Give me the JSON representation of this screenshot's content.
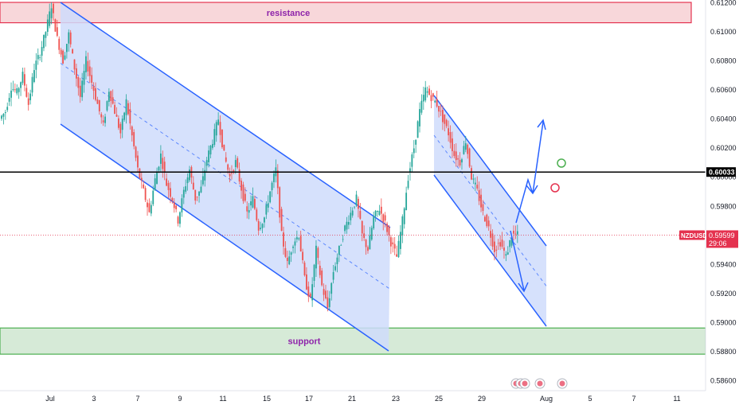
{
  "chart_data": {
    "type": "line",
    "symbol": "NZDUSD",
    "last_price": "0.59599",
    "countdown": "29:06",
    "marked_level": "0.60033",
    "y_ticks": [
      "0.61200",
      "0.61000",
      "0.60800",
      "0.60600",
      "0.60400",
      "0.60200",
      "0.60000",
      "0.59800",
      "0.59600",
      "0.59400",
      "0.59200",
      "0.59000",
      "0.58800",
      "0.58600"
    ],
    "x_ticks": [
      "Jul",
      "3",
      "7",
      "9",
      "11",
      "15",
      "17",
      "21",
      "23",
      "25",
      "29",
      "Aug",
      "5",
      "7",
      "11"
    ],
    "ylim": [
      0.5855,
      0.6122
    ],
    "zones": [
      {
        "label": "resistance",
        "low": 0.6106,
        "high": 0.612,
        "color": "#f8d7da",
        "border": "#e4324f",
        "text_color": "#8e24aa"
      },
      {
        "label": "support",
        "low": 0.5878,
        "high": 0.5896,
        "color": "#d6ead7",
        "border": "#4caf50",
        "text_color": "#8e24aa"
      }
    ],
    "series": [
      {
        "values": [
          0.6045,
          0.6062,
          0.6058,
          0.607,
          0.605,
          0.6075,
          0.6085,
          0.61,
          0.6118,
          0.6095,
          0.608,
          0.6098,
          0.6075,
          0.6055,
          0.608,
          0.6065,
          0.605,
          0.6035,
          0.606,
          0.6045,
          0.603,
          0.6052,
          0.6028,
          0.6005,
          0.599,
          0.5975,
          0.5998,
          0.6015,
          0.5995,
          0.5985,
          0.597,
          0.599,
          0.6005,
          0.5985,
          0.5992,
          0.6012,
          0.6025,
          0.604,
          0.6015,
          0.6,
          0.601,
          0.5992,
          0.5975,
          0.5985,
          0.5965,
          0.5972,
          0.599,
          0.6005,
          0.596,
          0.594,
          0.5955,
          0.596,
          0.593,
          0.5915,
          0.595,
          0.5925,
          0.591,
          0.5935,
          0.595,
          0.5965,
          0.5975,
          0.5985,
          0.596,
          0.595,
          0.5972,
          0.5978,
          0.5968,
          0.5955,
          0.5945,
          0.597,
          0.6,
          0.602,
          0.6045,
          0.606,
          0.6055,
          0.605,
          0.604,
          0.603,
          0.6015,
          0.601,
          0.6025,
          0.6,
          0.599,
          0.5975,
          0.5965,
          0.595,
          0.5955,
          0.5945,
          0.596,
          0.596
        ]
      }
    ],
    "channels": [
      {
        "upper_start": [
          0.612
        ],
        "upper_end": [
          0.5955
        ],
        "lower_start": [
          0.603
        ],
        "lower_end": [
          0.588
        ],
        "fill": "#cfdcfb",
        "line": "#2962ff"
      },
      {
        "upper_start": [
          0.606
        ],
        "upper_end": [
          0.595
        ],
        "lower_start": [
          0.6
        ],
        "lower_end": [
          0.5895
        ],
        "fill": "#cfdcfb",
        "line": "#2962ff"
      }
    ],
    "horizontal_line": {
      "value": 0.60033,
      "color": "#000000"
    },
    "last_price_line": {
      "value": 0.59599,
      "color": "#e4324f"
    },
    "markers": [
      {
        "type": "circle",
        "color": "#4caf50"
      },
      {
        "type": "circle",
        "color": "#e4324f"
      }
    ],
    "colors": {
      "bull": "#26a69a",
      "bear": "#ef5350",
      "channel": "#2962ff",
      "axis_text": "#131722"
    }
  }
}
